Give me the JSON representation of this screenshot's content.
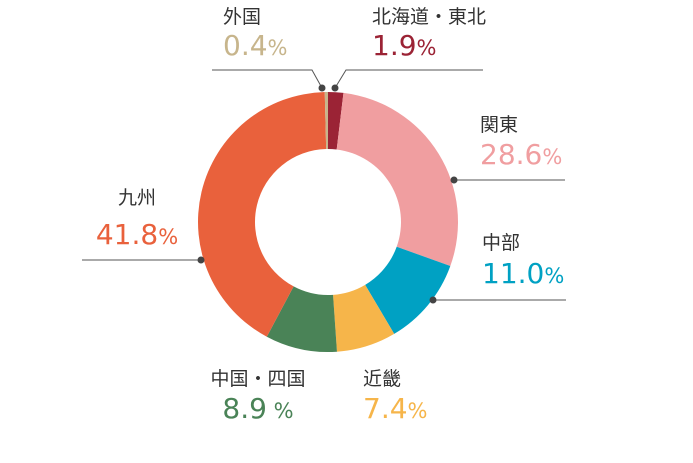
{
  "chart_data": {
    "type": "pie",
    "style": "donut",
    "title": "",
    "slices": [
      {
        "label": "北海道・東北",
        "value": 1.9,
        "display": "1.9%",
        "color": "#9b2335"
      },
      {
        "label": "関東",
        "value": 28.6,
        "display": "28.6%",
        "color": "#f09ea0"
      },
      {
        "label": "中部",
        "value": 11.0,
        "display": "11.0%",
        "color": "#00a1c3"
      },
      {
        "label": "近畿",
        "value": 7.4,
        "display": "7.4%",
        "color": "#f6b54a"
      },
      {
        "label": "中国・四国",
        "value": 8.9,
        "display": "8.9 %",
        "color": "#4a8357"
      },
      {
        "label": "九州",
        "value": 41.8,
        "display": "41.8%",
        "color": "#e9613c"
      },
      {
        "label": "外国",
        "value": 0.4,
        "display": "0.4%",
        "color": "#c7b58c"
      }
    ],
    "start_angle_deg": 0,
    "direction": "clockwise",
    "leader_color": "#555555"
  }
}
